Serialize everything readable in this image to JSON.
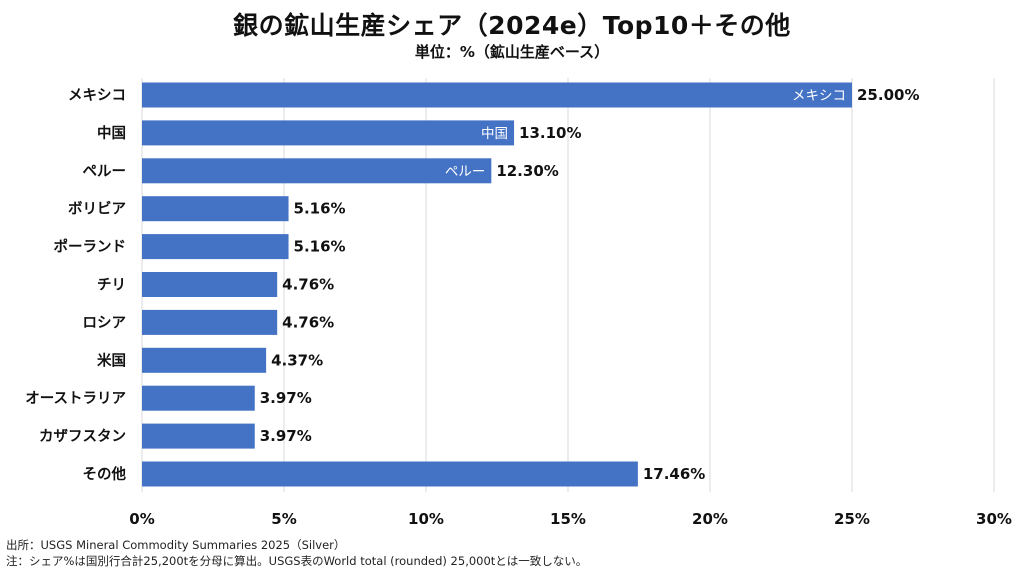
{
  "chart_data": {
    "type": "bar",
    "orientation": "horizontal",
    "title": "銀の鉱山生産シェア（2024e）Top10＋その他",
    "subtitle": "単位：%（鉱山生産ベース）",
    "categories": [
      "メキシコ",
      "中国",
      "ペルー",
      "ボリビア",
      "ポーランド",
      "チリ",
      "ロシア",
      "米国",
      "オーストラリア",
      "カザフスタン",
      "その他"
    ],
    "values": [
      25.0,
      13.1,
      12.3,
      5.16,
      5.16,
      4.76,
      4.76,
      4.37,
      3.97,
      3.97,
      17.46
    ],
    "value_labels": [
      "25.00%",
      "13.10%",
      "12.30%",
      "5.16%",
      "5.16%",
      "4.76%",
      "4.76%",
      "4.37%",
      "3.97%",
      "3.97%",
      "17.46%"
    ],
    "inside_labels": [
      "メキシコ",
      "中国",
      "ペルー",
      "",
      "",
      "",
      "",
      "",
      "",
      "",
      ""
    ],
    "xlim": [
      0,
      30
    ],
    "xticks": [
      0,
      5,
      10,
      15,
      20,
      25,
      30
    ],
    "xtick_labels": [
      "0%",
      "5%",
      "10%",
      "15%",
      "20%",
      "25%",
      "30%"
    ],
    "xlabel": "",
    "ylabel": "",
    "grid": true,
    "bar_color": "#4472c4"
  },
  "footnotes": {
    "source": "出所：USGS Mineral Commodity Summaries 2025（Silver）",
    "note": "注：シェア%は国別行合計25,200tを分母に算出。USGS表のWorld total (rounded) 25,000tとは一致しない。"
  }
}
